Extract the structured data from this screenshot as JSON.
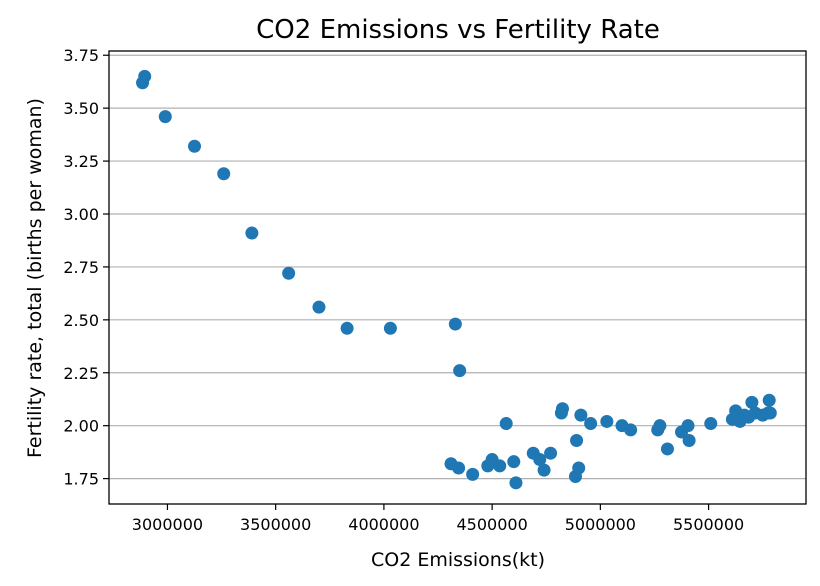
{
  "chart_data": {
    "type": "scatter",
    "title": "CO2 Emissions vs Fertility Rate",
    "xlabel": "CO2 Emissions(kt)",
    "ylabel": "Fertility rate, total (births per woman)",
    "xlim": [
      2730000,
      5950000
    ],
    "ylim": [
      1.63,
      3.77
    ],
    "xticks": [
      3000000,
      3500000,
      4000000,
      4500000,
      5000000,
      5500000
    ],
    "xtick_labels": [
      "3000000",
      "3500000",
      "4000000",
      "4500000",
      "5000000",
      "5500000"
    ],
    "yticks": [
      1.75,
      2.0,
      2.25,
      2.5,
      2.75,
      3.0,
      3.25,
      3.5,
      3.75
    ],
    "ytick_labels": [
      "1.75",
      "2.00",
      "2.25",
      "2.50",
      "2.75",
      "3.00",
      "3.25",
      "3.50",
      "3.75"
    ],
    "grid": "y",
    "color": "#1f77b4",
    "points": [
      [
        2885000,
        3.62
      ],
      [
        2895000,
        3.65
      ],
      [
        2990000,
        3.46
      ],
      [
        3125000,
        3.32
      ],
      [
        3260000,
        3.19
      ],
      [
        3390000,
        2.91
      ],
      [
        3560000,
        2.72
      ],
      [
        3700000,
        2.56
      ],
      [
        3830000,
        2.46
      ],
      [
        4030000,
        2.46
      ],
      [
        4330000,
        2.48
      ],
      [
        4350000,
        2.26
      ],
      [
        4310000,
        1.82
      ],
      [
        4345000,
        1.8
      ],
      [
        4410000,
        1.77
      ],
      [
        4480000,
        1.81
      ],
      [
        4500000,
        1.84
      ],
      [
        4535000,
        1.81
      ],
      [
        4565000,
        2.01
      ],
      [
        4600000,
        1.83
      ],
      [
        4610000,
        1.73
      ],
      [
        4690000,
        1.87
      ],
      [
        4720000,
        1.84
      ],
      [
        4740000,
        1.79
      ],
      [
        4770000,
        1.87
      ],
      [
        4820000,
        2.06
      ],
      [
        4825000,
        2.08
      ],
      [
        4885000,
        1.76
      ],
      [
        4890000,
        1.93
      ],
      [
        4900000,
        1.8
      ],
      [
        4910000,
        2.05
      ],
      [
        4955000,
        2.01
      ],
      [
        5030000,
        2.02
      ],
      [
        5100000,
        2.0
      ],
      [
        5140000,
        1.98
      ],
      [
        5265000,
        1.98
      ],
      [
        5275000,
        2.0
      ],
      [
        5310000,
        1.89
      ],
      [
        5375000,
        1.97
      ],
      [
        5405000,
        2.0
      ],
      [
        5410000,
        1.93
      ],
      [
        5510000,
        2.01
      ],
      [
        5610000,
        2.03
      ],
      [
        5625000,
        2.07
      ],
      [
        5645000,
        2.02
      ],
      [
        5665000,
        2.05
      ],
      [
        5685000,
        2.04
      ],
      [
        5700000,
        2.11
      ],
      [
        5715000,
        2.06
      ],
      [
        5750000,
        2.05
      ],
      [
        5775000,
        2.06
      ],
      [
        5780000,
        2.12
      ],
      [
        5785000,
        2.06
      ]
    ]
  }
}
